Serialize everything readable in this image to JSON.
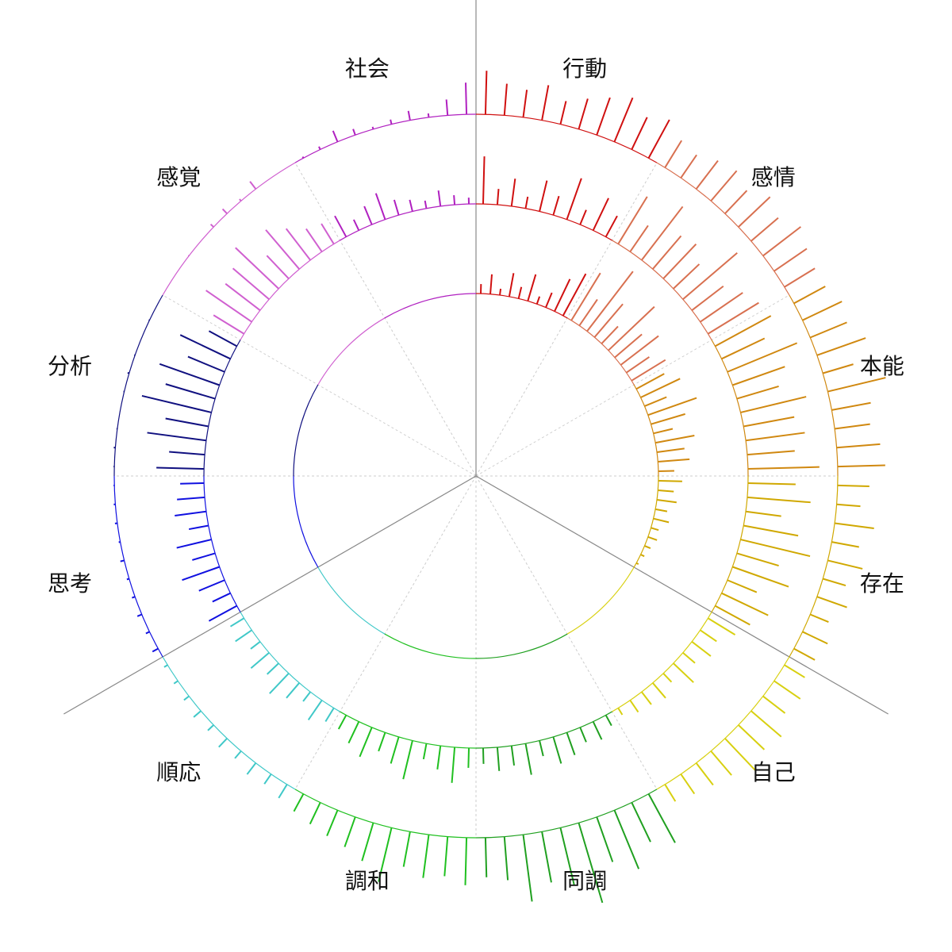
{
  "chart_data": {
    "type": "radial-bar",
    "segments": [
      {
        "name": "行動",
        "color": "#d01010"
      },
      {
        "name": "感情",
        "color": "#d87050"
      },
      {
        "name": "本能",
        "color": "#d08810"
      },
      {
        "name": "存在",
        "color": "#d0a800"
      },
      {
        "name": "自己",
        "color": "#d8d010"
      },
      {
        "name": "同調",
        "color": "#20a020"
      },
      {
        "name": "調和",
        "color": "#20c020"
      },
      {
        "name": "順応",
        "color": "#40c8c8"
      },
      {
        "name": "思考",
        "color": "#1010e0"
      },
      {
        "name": "分析",
        "color": "#101080"
      },
      {
        "name": "感覚",
        "color": "#d060d0"
      },
      {
        "name": "社会",
        "color": "#b020c0"
      }
    ],
    "rings": [
      {
        "values": [
          [
            12,
            25,
            8,
            30,
            15,
            35,
            10,
            20,
            45,
            60
          ],
          [
            70,
            40,
            95,
            55,
            30,
            80,
            45,
            60,
            35,
            50
          ],
          [
            40,
            55,
            30,
            65,
            45,
            25,
            50,
            35,
            40,
            20
          ],
          [
            30,
            20,
            25,
            15,
            20,
            10,
            12,
            8,
            5,
            3
          ],
          [
            0,
            0,
            0,
            0,
            0,
            0,
            0,
            0,
            0,
            0
          ],
          [
            0,
            0,
            0,
            0,
            0,
            0,
            0,
            0,
            0,
            0
          ],
          [
            0,
            0,
            0,
            0,
            0,
            0,
            0,
            0,
            0,
            0
          ],
          [
            0,
            0,
            0,
            0,
            0,
            0,
            0,
            0,
            0,
            0
          ],
          [
            0,
            0,
            0,
            0,
            0,
            0,
            0,
            0,
            0,
            0
          ],
          [
            0,
            0,
            0,
            0,
            0,
            0,
            0,
            0,
            0,
            0
          ],
          [
            0,
            0,
            0,
            0,
            0,
            0,
            0,
            0,
            0,
            0
          ],
          [
            0,
            0,
            0,
            0,
            0,
            0,
            0,
            0,
            0,
            0
          ]
        ]
      },
      {
        "values": [
          [
            60,
            20,
            35,
            15,
            40,
            25,
            55,
            20,
            45,
            30
          ],
          [
            70,
            40,
            85,
            55,
            60,
            45,
            90,
            50,
            65,
            75
          ],
          [
            80,
            60,
            95,
            70,
            55,
            85,
            65,
            75,
            60,
            90
          ],
          [
            60,
            80,
            45,
            70,
            90,
            55,
            75,
            40,
            65,
            50
          ],
          [
            40,
            25,
            30,
            20,
            35,
            15,
            25,
            20,
            18,
            10
          ],
          [
            15,
            25,
            20,
            30,
            35,
            20,
            40,
            25,
            30,
            20
          ],
          [
            25,
            45,
            30,
            20,
            50,
            35,
            25,
            40,
            30,
            20
          ],
          [
            20,
            30,
            15,
            25,
            35,
            20,
            30,
            15,
            25,
            20
          ],
          [
            40,
            25,
            35,
            50,
            30,
            45,
            25,
            40,
            35,
            30
          ],
          [
            60,
            45,
            75,
            55,
            90,
            65,
            80,
            50,
            70,
            40
          ],
          [
            45,
            70,
            55,
            60,
            75,
            40,
            65,
            50,
            35,
            30
          ],
          [
            30,
            15,
            25,
            35,
            20,
            15,
            10,
            20,
            12,
            8
          ]
        ]
      },
      {
        "values": [
          [
            55,
            40,
            35,
            45,
            30,
            40,
            50,
            60,
            45,
            55
          ],
          [
            40,
            35,
            45,
            50,
            40,
            55,
            45,
            60,
            50,
            45
          ],
          [
            45,
            55,
            50,
            65,
            40,
            75,
            50,
            45,
            55,
            60
          ],
          [
            40,
            30,
            50,
            35,
            45,
            30,
            40,
            25,
            35,
            30
          ],
          [
            30,
            40,
            35,
            50,
            45,
            55,
            40,
            35,
            30,
            25
          ],
          [
            70,
            55,
            80,
            60,
            105,
            75,
            65,
            85,
            55,
            50
          ],
          [
            60,
            50,
            55,
            45,
            70,
            50,
            40,
            35,
            30,
            25
          ],
          [
            20,
            15,
            18,
            12,
            15,
            10,
            12,
            8,
            6,
            5
          ],
          [
            8,
            5,
            6,
            4,
            3,
            5,
            2,
            3,
            2,
            1
          ],
          [
            1,
            2,
            1,
            0,
            1,
            2,
            1,
            0,
            1,
            0
          ],
          [
            0,
            0,
            1,
            0,
            5,
            8,
            3,
            12,
            0,
            0
          ],
          [
            2,
            4,
            15,
            8,
            3,
            6,
            12,
            5,
            20,
            40
          ]
        ]
      }
    ]
  }
}
